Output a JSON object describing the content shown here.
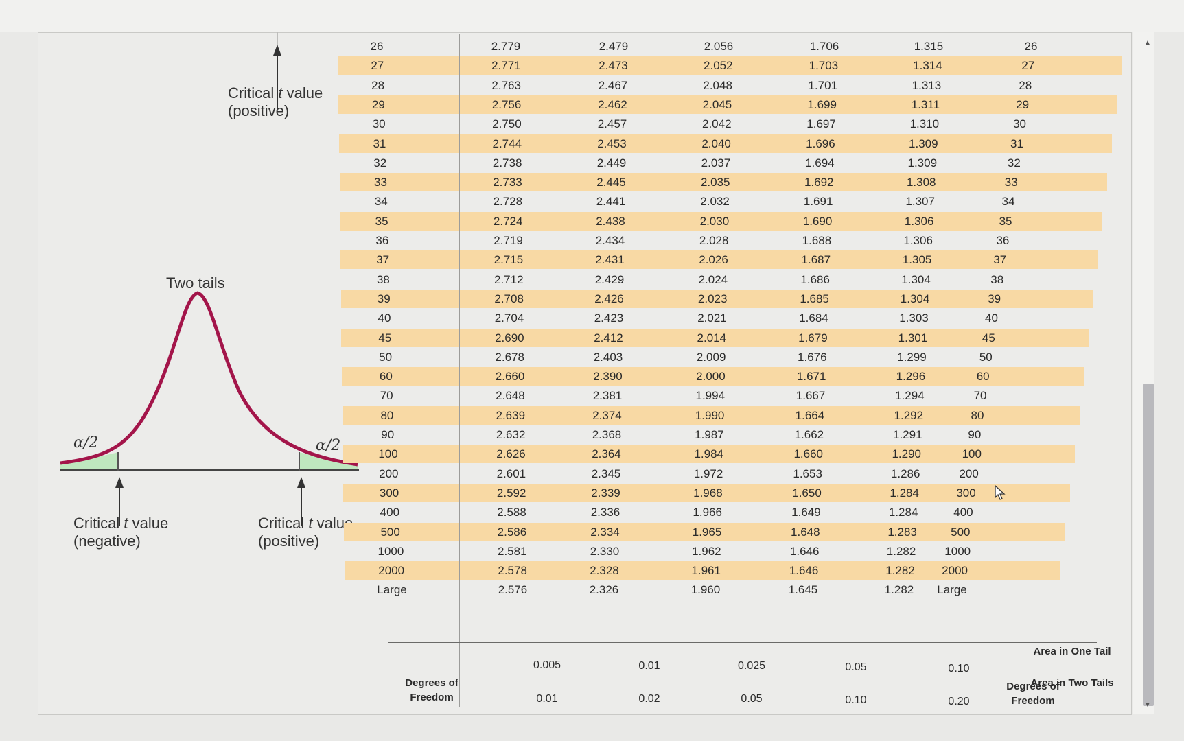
{
  "diagram": {
    "title": "Two tails",
    "top_label_line1": "Critical",
    "top_label_t": "t",
    "top_label_line1_end": "value",
    "top_label_line2": "(positive)",
    "left_alpha": "α/2",
    "right_alpha": "α/2",
    "neg_label_line1": "Critical",
    "neg_label_t": "t",
    "neg_label_line1_end": "value",
    "neg_label_line2": "(negative)",
    "pos_label_line1": "Critical",
    "pos_label_t": "t",
    "pos_label_line1_end": "value",
    "pos_label_line2": "(positive)",
    "curve_color": "#a3154a",
    "tail_fill_color": "#bfe8bf"
  },
  "table": {
    "rows": [
      {
        "df": "26",
        "v": [
          "2.779",
          "2.479",
          "2.056",
          "1.706",
          "1.315"
        ]
      },
      {
        "df": "27",
        "v": [
          "2.771",
          "2.473",
          "2.052",
          "1.703",
          "1.314"
        ]
      },
      {
        "df": "28",
        "v": [
          "2.763",
          "2.467",
          "2.048",
          "1.701",
          "1.313"
        ]
      },
      {
        "df": "29",
        "v": [
          "2.756",
          "2.462",
          "2.045",
          "1.699",
          "1.311"
        ]
      },
      {
        "df": "30",
        "v": [
          "2.750",
          "2.457",
          "2.042",
          "1.697",
          "1.310"
        ]
      },
      {
        "df": "31",
        "v": [
          "2.744",
          "2.453",
          "2.040",
          "1.696",
          "1.309"
        ]
      },
      {
        "df": "32",
        "v": [
          "2.738",
          "2.449",
          "2.037",
          "1.694",
          "1.309"
        ]
      },
      {
        "df": "33",
        "v": [
          "2.733",
          "2.445",
          "2.035",
          "1.692",
          "1.308"
        ]
      },
      {
        "df": "34",
        "v": [
          "2.728",
          "2.441",
          "2.032",
          "1.691",
          "1.307"
        ]
      },
      {
        "df": "35",
        "v": [
          "2.724",
          "2.438",
          "2.030",
          "1.690",
          "1.306"
        ]
      },
      {
        "df": "36",
        "v": [
          "2.719",
          "2.434",
          "2.028",
          "1.688",
          "1.306"
        ]
      },
      {
        "df": "37",
        "v": [
          "2.715",
          "2.431",
          "2.026",
          "1.687",
          "1.305"
        ]
      },
      {
        "df": "38",
        "v": [
          "2.712",
          "2.429",
          "2.024",
          "1.686",
          "1.304"
        ]
      },
      {
        "df": "39",
        "v": [
          "2.708",
          "2.426",
          "2.023",
          "1.685",
          "1.304"
        ]
      },
      {
        "df": "40",
        "v": [
          "2.704",
          "2.423",
          "2.021",
          "1.684",
          "1.303"
        ]
      },
      {
        "df": "45",
        "v": [
          "2.690",
          "2.412",
          "2.014",
          "1.679",
          "1.301"
        ]
      },
      {
        "df": "50",
        "v": [
          "2.678",
          "2.403",
          "2.009",
          "1.676",
          "1.299"
        ]
      },
      {
        "df": "60",
        "v": [
          "2.660",
          "2.390",
          "2.000",
          "1.671",
          "1.296"
        ]
      },
      {
        "df": "70",
        "v": [
          "2.648",
          "2.381",
          "1.994",
          "1.667",
          "1.294"
        ]
      },
      {
        "df": "80",
        "v": [
          "2.639",
          "2.374",
          "1.990",
          "1.664",
          "1.292"
        ]
      },
      {
        "df": "90",
        "v": [
          "2.632",
          "2.368",
          "1.987",
          "1.662",
          "1.291"
        ]
      },
      {
        "df": "100",
        "v": [
          "2.626",
          "2.364",
          "1.984",
          "1.660",
          "1.290"
        ]
      },
      {
        "df": "200",
        "v": [
          "2.601",
          "2.345",
          "1.972",
          "1.653",
          "1.286"
        ]
      },
      {
        "df": "300",
        "v": [
          "2.592",
          "2.339",
          "1.968",
          "1.650",
          "1.284"
        ]
      },
      {
        "df": "400",
        "v": [
          "2.588",
          "2.336",
          "1.966",
          "1.649",
          "1.284"
        ]
      },
      {
        "df": "500",
        "v": [
          "2.586",
          "2.334",
          "1.965",
          "1.648",
          "1.283"
        ]
      },
      {
        "df": "1000",
        "v": [
          "2.581",
          "2.330",
          "1.962",
          "1.646",
          "1.282"
        ]
      },
      {
        "df": "2000",
        "v": [
          "2.578",
          "2.328",
          "1.961",
          "1.646",
          "1.282"
        ]
      },
      {
        "df": "Large",
        "v": [
          "2.576",
          "2.326",
          "1.960",
          "1.645",
          "1.282"
        ]
      }
    ],
    "shade_color": "#f8d9a4",
    "footer": {
      "one_tail_title": "Area in One Tail",
      "one_tail": [
        "0.005",
        "0.01",
        "0.025",
        "0.05",
        "0.10"
      ],
      "two_tail_title": "Area in Two Tails",
      "two_tail": [
        "0.01",
        "0.02",
        "0.05",
        "0.10",
        "0.20"
      ],
      "df_label_line1": "Degrees of",
      "df_label_line2": "Freedom"
    }
  }
}
